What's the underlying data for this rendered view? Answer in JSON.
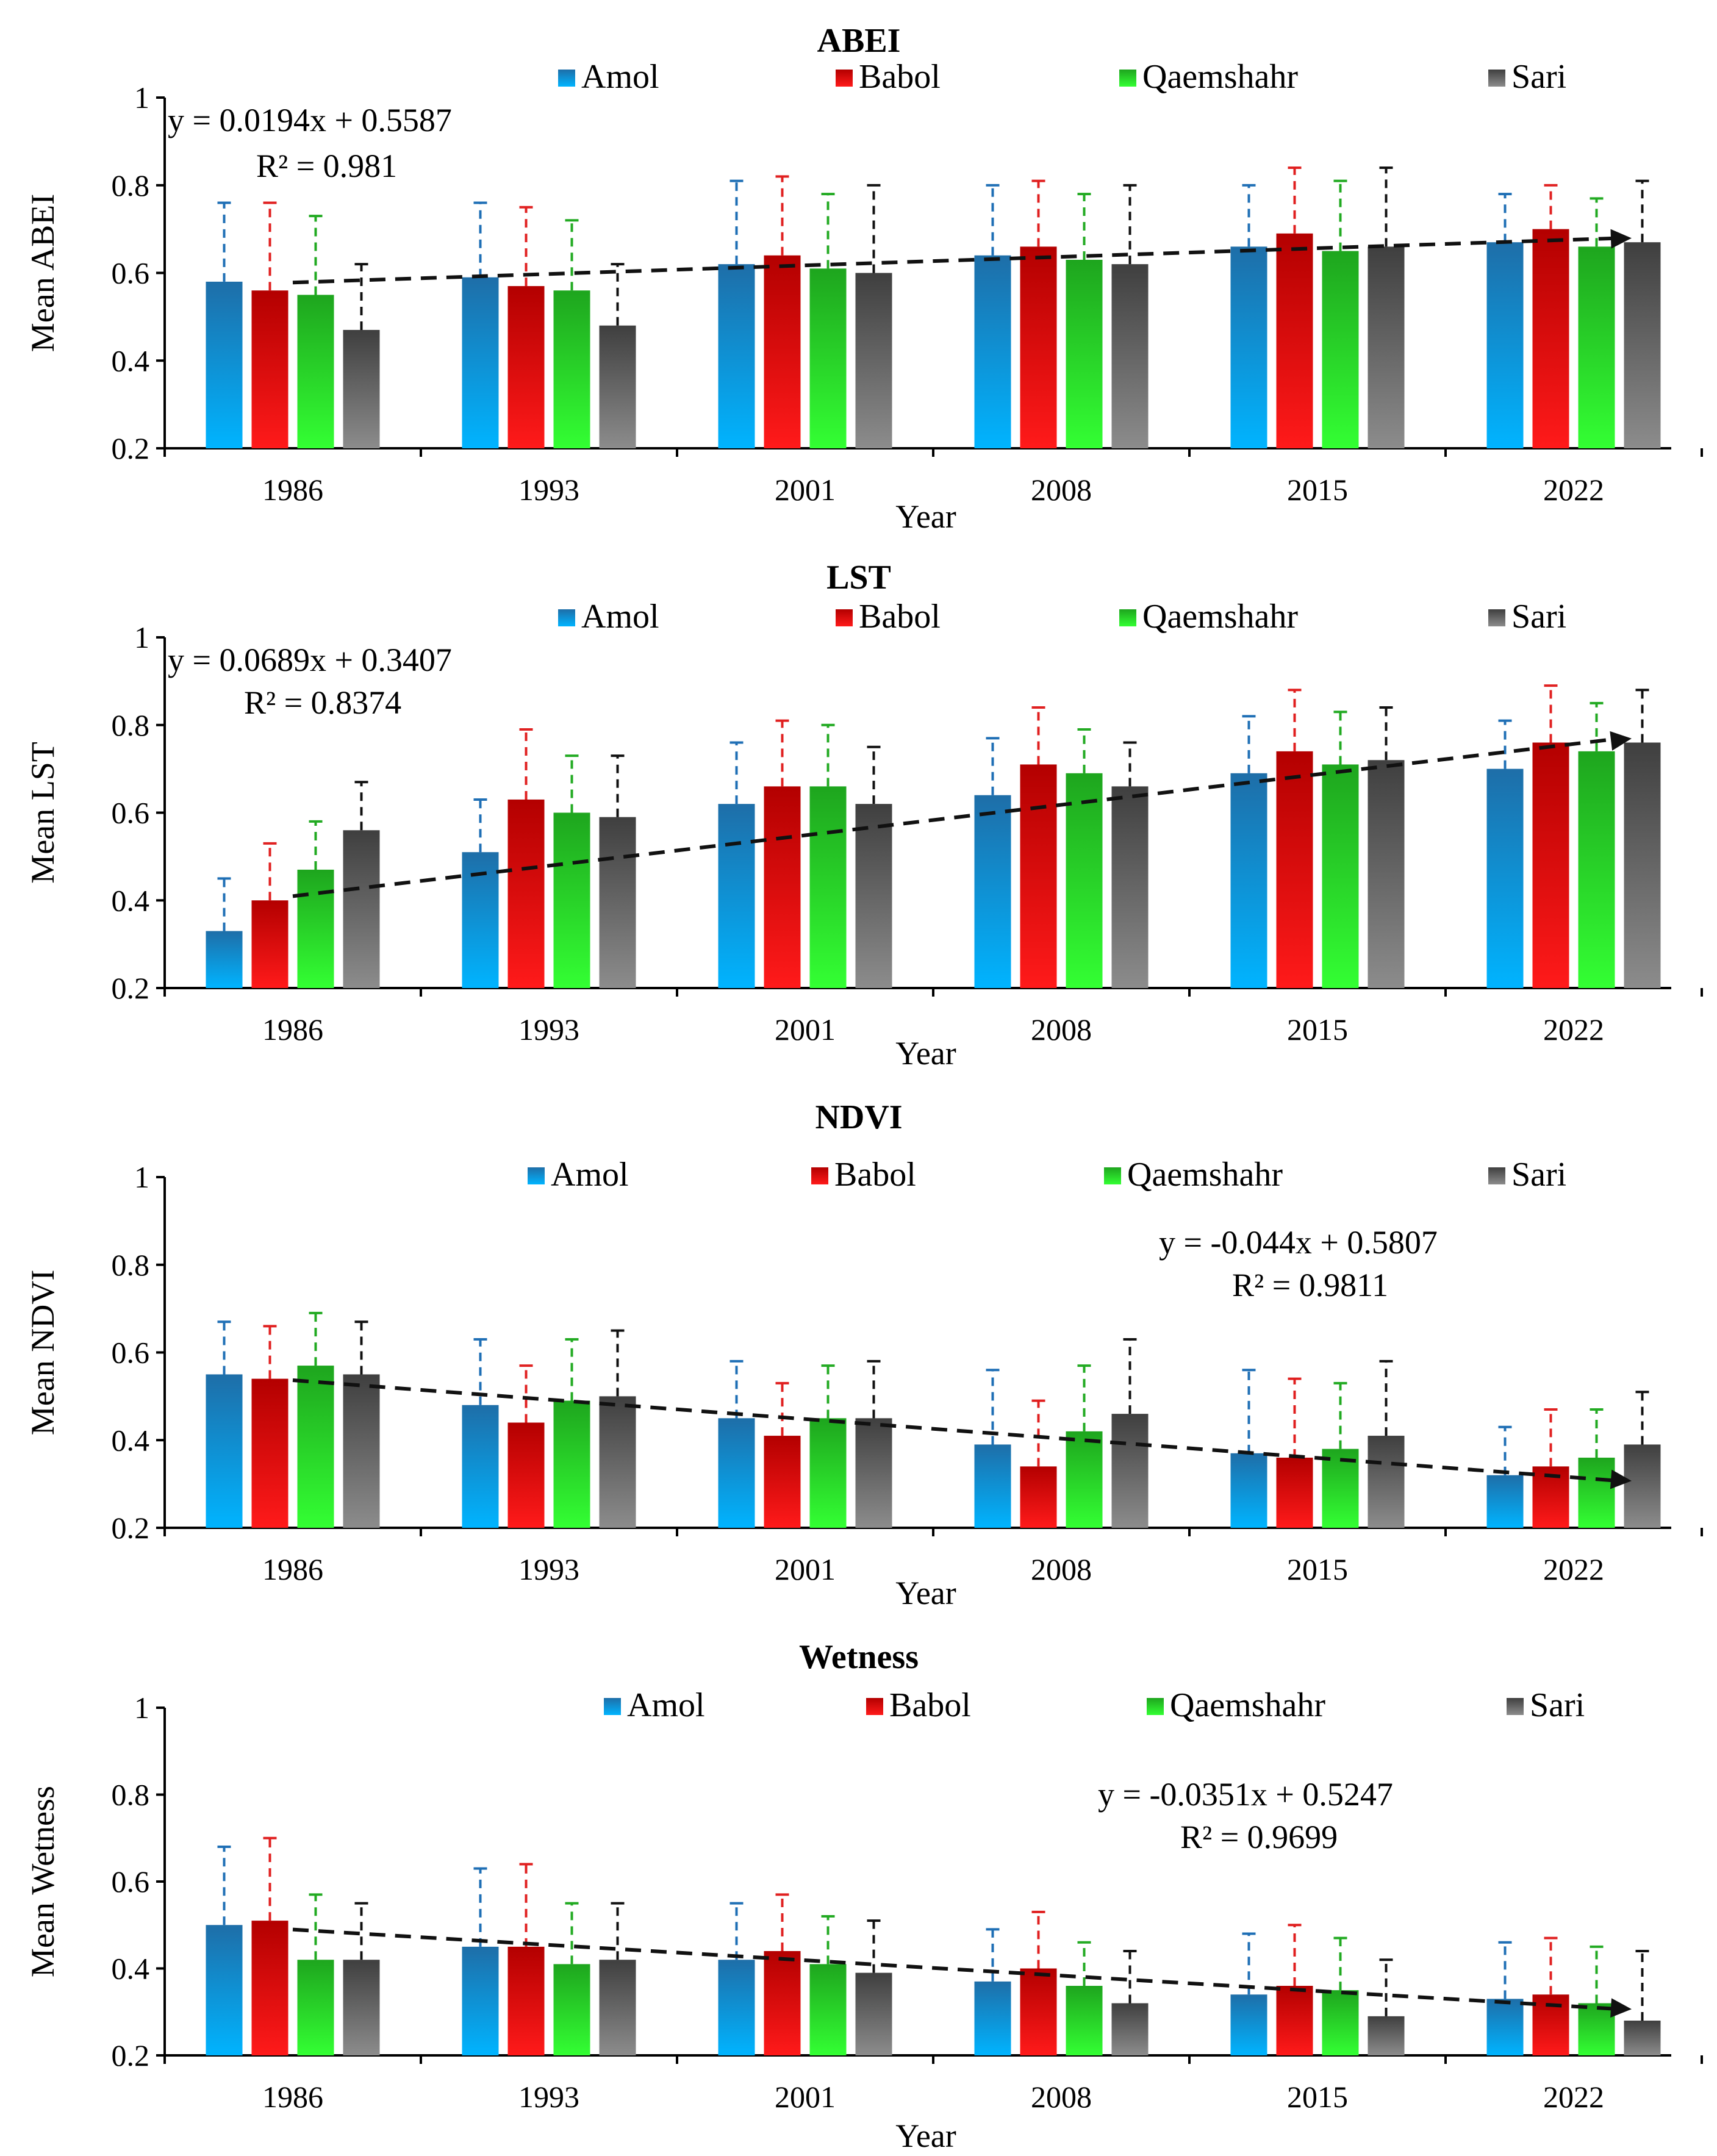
{
  "chart_data": [
    {
      "type": "bar",
      "title": "ABEI",
      "xlabel": "Year",
      "ylabel": "Mean ABEI",
      "ylim": [
        0.2,
        1
      ],
      "yticks": [
        "0.2",
        "0.4",
        "0.6",
        "0.8",
        "1"
      ],
      "grid": false,
      "categories": [
        "1986",
        "1993",
        "2001",
        "2008",
        "2015",
        "2022"
      ],
      "series": [
        {
          "name": "Amol",
          "values": [
            0.58,
            0.59,
            0.62,
            0.64,
            0.66,
            0.67
          ],
          "errors_upper": [
            0.76,
            0.76,
            0.81,
            0.8,
            0.8,
            0.78
          ]
        },
        {
          "name": "Babol",
          "values": [
            0.56,
            0.57,
            0.64,
            0.66,
            0.69,
            0.7
          ],
          "errors_upper": [
            0.76,
            0.75,
            0.82,
            0.81,
            0.84,
            0.8
          ]
        },
        {
          "name": "Qaemshahr",
          "values": [
            0.55,
            0.56,
            0.61,
            0.63,
            0.65,
            0.66
          ],
          "errors_upper": [
            0.73,
            0.72,
            0.78,
            0.78,
            0.81,
            0.77
          ]
        },
        {
          "name": "Sari",
          "values": [
            0.47,
            0.48,
            0.6,
            0.62,
            0.66,
            0.67
          ],
          "errors_upper": [
            0.62,
            0.62,
            0.8,
            0.8,
            0.84,
            0.81
          ]
        }
      ],
      "trendline": {
        "slope": 0.0194,
        "intercept": 0.5587
      },
      "equation": "y = 0.0194x + 0.5587",
      "r_squared": "R² = 0.981",
      "equation_position": "top-left",
      "legend_position": "top"
    },
    {
      "type": "bar",
      "title": "LST",
      "xlabel": "Year",
      "ylabel": "Mean LST",
      "ylim": [
        0.2,
        1
      ],
      "yticks": [
        "0.2",
        "0.4",
        "0.6",
        "0.8",
        "1"
      ],
      "grid": false,
      "categories": [
        "1986",
        "1993",
        "2001",
        "2008",
        "2015",
        "2022"
      ],
      "series": [
        {
          "name": "Amol",
          "values": [
            0.33,
            0.51,
            0.62,
            0.64,
            0.69,
            0.7
          ],
          "errors_upper": [
            0.45,
            0.63,
            0.76,
            0.77,
            0.82,
            0.81
          ]
        },
        {
          "name": "Babol",
          "values": [
            0.4,
            0.63,
            0.66,
            0.71,
            0.74,
            0.76
          ],
          "errors_upper": [
            0.53,
            0.79,
            0.81,
            0.84,
            0.88,
            0.89
          ]
        },
        {
          "name": "Qaemshahr",
          "values": [
            0.47,
            0.6,
            0.66,
            0.69,
            0.71,
            0.74
          ],
          "errors_upper": [
            0.58,
            0.73,
            0.8,
            0.79,
            0.83,
            0.85
          ]
        },
        {
          "name": "Sari",
          "values": [
            0.56,
            0.59,
            0.62,
            0.66,
            0.72,
            0.76
          ],
          "errors_upper": [
            0.67,
            0.73,
            0.75,
            0.76,
            0.84,
            0.88
          ]
        }
      ],
      "trendline": {
        "slope": 0.0689,
        "intercept": 0.3407
      },
      "equation": "y = 0.0689x + 0.3407",
      "r_squared": "R² = 0.8374",
      "equation_position": "top-left",
      "legend_position": "top"
    },
    {
      "type": "bar",
      "title": "NDVI",
      "xlabel": "Year",
      "ylabel": "Mean NDVI",
      "ylim": [
        0.2,
        1
      ],
      "yticks": [
        "0.2",
        "0.4",
        "0.6",
        "0.8",
        "1"
      ],
      "grid": false,
      "categories": [
        "1986",
        "1993",
        "2001",
        "2008",
        "2015",
        "2022"
      ],
      "series": [
        {
          "name": "Amol",
          "values": [
            0.55,
            0.48,
            0.45,
            0.39,
            0.37,
            0.32
          ],
          "errors_upper": [
            0.67,
            0.63,
            0.58,
            0.56,
            0.56,
            0.43
          ]
        },
        {
          "name": "Babol",
          "values": [
            0.54,
            0.44,
            0.41,
            0.34,
            0.36,
            0.34
          ],
          "errors_upper": [
            0.66,
            0.57,
            0.53,
            0.49,
            0.54,
            0.47
          ]
        },
        {
          "name": "Qaemshahr",
          "values": [
            0.57,
            0.49,
            0.45,
            0.42,
            0.38,
            0.36
          ],
          "errors_upper": [
            0.69,
            0.63,
            0.57,
            0.57,
            0.53,
            0.47
          ]
        },
        {
          "name": "Sari",
          "values": [
            0.55,
            0.5,
            0.45,
            0.46,
            0.41,
            0.39
          ],
          "errors_upper": [
            0.67,
            0.65,
            0.58,
            0.63,
            0.58,
            0.51
          ]
        }
      ],
      "trendline": {
        "slope": -0.044,
        "intercept": 0.5807
      },
      "equation": "y = -0.044x + 0.5807",
      "r_squared": "R² = 0.9811",
      "equation_position": "top-right",
      "legend_position": "top"
    },
    {
      "type": "bar",
      "title": "Wetness",
      "xlabel": "Year",
      "ylabel": "Mean Wetness",
      "ylim": [
        0.2,
        1
      ],
      "yticks": [
        "0.2",
        "0.4",
        "0.6",
        "0.8",
        "1"
      ],
      "grid": false,
      "categories": [
        "1986",
        "1993",
        "2001",
        "2008",
        "2015",
        "2022"
      ],
      "series": [
        {
          "name": "Amol",
          "values": [
            0.5,
            0.45,
            0.42,
            0.37,
            0.34,
            0.33
          ],
          "errors_upper": [
            0.68,
            0.63,
            0.55,
            0.49,
            0.48,
            0.46
          ]
        },
        {
          "name": "Babol",
          "values": [
            0.51,
            0.45,
            0.44,
            0.4,
            0.36,
            0.34
          ],
          "errors_upper": [
            0.7,
            0.64,
            0.57,
            0.53,
            0.5,
            0.47
          ]
        },
        {
          "name": "Qaemshahr",
          "values": [
            0.42,
            0.41,
            0.41,
            0.36,
            0.35,
            0.32
          ],
          "errors_upper": [
            0.57,
            0.55,
            0.52,
            0.46,
            0.47,
            0.45
          ]
        },
        {
          "name": "Sari",
          "values": [
            0.42,
            0.42,
            0.39,
            0.32,
            0.29,
            0.28
          ],
          "errors_upper": [
            0.55,
            0.55,
            0.51,
            0.44,
            0.42,
            0.44
          ]
        }
      ],
      "trendline": {
        "slope": -0.0351,
        "intercept": 0.5247
      },
      "equation": "y = -0.0351x + 0.5247",
      "r_squared": "R² = 0.9699",
      "equation_position": "top-right",
      "legend_position": "top"
    }
  ],
  "colors": {
    "Amol": {
      "top": "#1e6ea8",
      "bottom": "#00b4ff",
      "error": "#1f6fb5"
    },
    "Babol": {
      "top": "#b30000",
      "bottom": "#ff1a1a",
      "error": "#e02020"
    },
    "Qaemshahr": {
      "top": "#1ea51e",
      "bottom": "#33ff33",
      "error": "#22aa22"
    },
    "Sari": {
      "top": "#3f3f3f",
      "bottom": "#8c8c8c",
      "error": "#111111"
    },
    "axis": "#000000",
    "trend": "#111111"
  }
}
